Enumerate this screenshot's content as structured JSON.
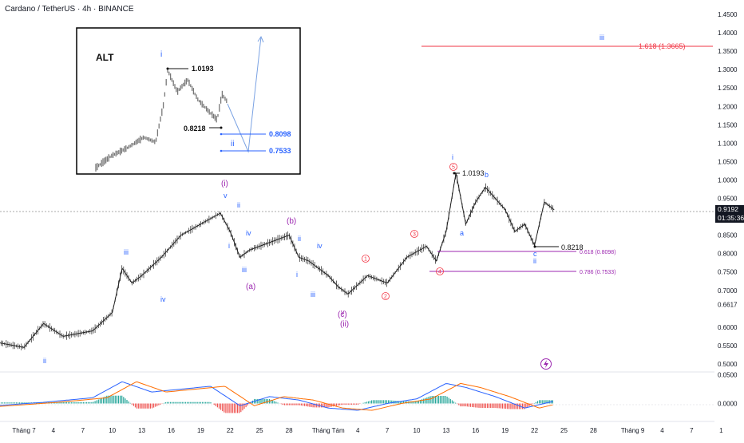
{
  "header": {
    "title": "Cardano / TetherUS · 4h · BINANCE"
  },
  "price_axis": {
    "ticks": [
      "1.4500",
      "1.4000",
      "1.3500",
      "1.3000",
      "1.2500",
      "1.2000",
      "1.1500",
      "1.1000",
      "1.0500",
      "1.0000",
      "0.9500",
      "0.9000",
      "0.8500",
      "0.8000",
      "0.7500",
      "0.7000",
      "0.6617",
      "0.6000",
      "0.5500",
      "0.5000"
    ],
    "current_price": "0.9192",
    "countdown": "01:35:36"
  },
  "macd_axis": {
    "ticks": [
      "0.0500",
      "0.0000"
    ]
  },
  "time_axis": {
    "ticks": [
      "Tháng 7",
      "4",
      "7",
      "10",
      "13",
      "16",
      "19",
      "22",
      "25",
      "28",
      "Tháng Tám",
      "4",
      "7",
      "10",
      "13",
      "16",
      "19",
      "22",
      "25",
      "28",
      "Tháng 9",
      "4",
      "7",
      "1"
    ]
  },
  "inset": {
    "title": "ALT",
    "label_i": "i",
    "label_ii": "ii",
    "price_high": "1.0193",
    "price_low": "0.8218",
    "target_1": "0.8098",
    "target_2": "0.7533"
  },
  "annotations": {
    "fib_1618": "1.618 (1.3665)",
    "wave_iii_target": "iii",
    "fib_0618": "0.618 (0.8098)",
    "fib_0786": "0.786 (0.7533)",
    "high_price": "1.0193",
    "low_price": "0.8218",
    "waves": {
      "ii_low": "ii",
      "iii_1": "iii",
      "iv_1": "iv",
      "v_1": "v",
      "i_top": "(i)",
      "ii_sm": "ii",
      "i_sm": "i",
      "iv_sm": "iv",
      "iii_sm": "iii",
      "a": "(a)",
      "b": "(b)",
      "ii_b": "ii",
      "iv_b": "iv",
      "i_b": "i",
      "iii_b": "iii",
      "v_c": "v",
      "c": "(c)",
      "ii_big": "(ii)",
      "c1": "1",
      "c2": "2",
      "c3": "3",
      "c4": "4",
      "c5": "5",
      "i_high": "i",
      "b_small": "b",
      "a_small": "a",
      "c_small": "c",
      "ii_small": "ii"
    }
  },
  "chart_data": {
    "type": "line",
    "title": "Cardano / TetherUS · 4h · BINANCE",
    "xlabel": "",
    "ylabel": "",
    "ylim": [
      0.48,
      1.46
    ],
    "price_series": {
      "x": [
        "Jun 28",
        "Jul 1",
        "Jul 3",
        "Jul 5",
        "Jul 8",
        "Jul 10",
        "Jul 11",
        "Jul 12",
        "Jul 13",
        "Jul 15",
        "Jul 17",
        "Jul 19",
        "Jul 21",
        "Jul 22",
        "Jul 23",
        "Jul 24",
        "Jul 26",
        "Jul 28",
        "Jul 29",
        "Jul 30",
        "Aug 1",
        "Aug 2",
        "Aug 3",
        "Aug 5",
        "Aug 7",
        "Aug 9",
        "Aug 11",
        "Aug 12",
        "Aug 13",
        "Aug 14",
        "Aug 15",
        "Aug 16",
        "Aug 17",
        "Aug 19",
        "Aug 20",
        "Aug 21",
        "Aug 22",
        "Aug 23",
        "Aug 24"
      ],
      "values": [
        0.56,
        0.545,
        0.61,
        0.575,
        0.59,
        0.64,
        0.76,
        0.72,
        0.74,
        0.79,
        0.85,
        0.88,
        0.91,
        0.86,
        0.79,
        0.81,
        0.83,
        0.85,
        0.79,
        0.78,
        0.74,
        0.71,
        0.69,
        0.74,
        0.72,
        0.79,
        0.82,
        0.78,
        0.86,
        1.019,
        0.88,
        0.94,
        0.98,
        0.92,
        0.86,
        0.88,
        0.822,
        0.94,
        0.919
      ]
    },
    "macd_series": {
      "x": [
        "Jun 28",
        "Jul 3",
        "Jul 8",
        "Jul 11",
        "Jul 14",
        "Jul 17",
        "Jul 20",
        "Jul 23",
        "Jul 26",
        "Jul 29",
        "Aug 1",
        "Aug 4",
        "Aug 7",
        "Aug 10",
        "Aug 13",
        "Aug 15",
        "Aug 18",
        "Aug 21",
        "Aug 24"
      ],
      "values": [
        -0.004,
        0.002,
        0.01,
        0.038,
        0.02,
        0.025,
        0.03,
        -0.004,
        0.012,
        0.006,
        -0.008,
        -0.012,
        0.0,
        0.008,
        0.035,
        0.028,
        0.012,
        -0.008,
        0.004
      ]
    },
    "macd_ylim": [
      -0.03,
      0.055
    ],
    "levels": [
      {
        "label": "1.618 (1.3665)",
        "value": 1.3665
      },
      {
        "label": "0.618 (0.8098)",
        "value": 0.8098
      },
      {
        "label": "0.786 (0.7533)",
        "value": 0.7533
      }
    ],
    "grid": false,
    "legend": "none"
  }
}
